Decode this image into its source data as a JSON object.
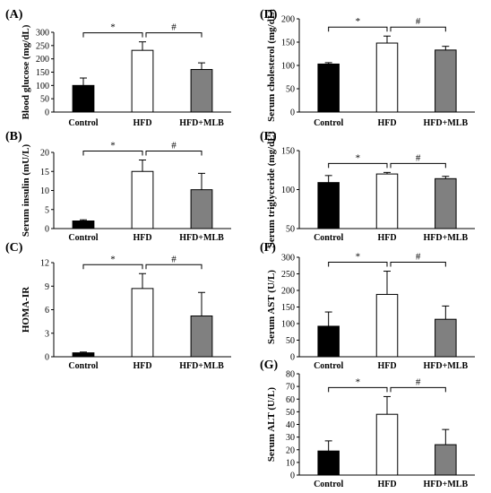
{
  "chart_data": [
    {
      "panel": "(A)",
      "type": "bar",
      "categories": [
        "Control",
        "HFD",
        "HFD+MLB"
      ],
      "values": [
        100,
        232,
        160
      ],
      "errors": [
        28,
        32,
        25
      ],
      "ylabel": "Blood glucose (mg/dL)",
      "ylim": [
        0,
        300
      ],
      "yticks": [
        0,
        50,
        100,
        150,
        200,
        250,
        300
      ],
      "bar_colors": [
        "#000000",
        "#ffffff",
        "#808080"
      ],
      "annotations": [
        {
          "from": 0,
          "to": 1,
          "symbol": "*"
        },
        {
          "from": 1,
          "to": 2,
          "symbol": "#"
        }
      ]
    },
    {
      "panel": "(B)",
      "type": "bar",
      "categories": [
        "Control",
        "HFD",
        "HFD+MLB"
      ],
      "values": [
        2,
        15,
        10.2
      ],
      "errors": [
        0.3,
        3,
        4.3
      ],
      "ylabel": "Serum insulin (mU/L)",
      "ylim": [
        0,
        20
      ],
      "yticks": [
        0,
        5,
        10,
        15,
        20
      ],
      "bar_colors": [
        "#000000",
        "#ffffff",
        "#808080"
      ],
      "annotations": [
        {
          "from": 0,
          "to": 1,
          "symbol": "*"
        },
        {
          "from": 1,
          "to": 2,
          "symbol": "#"
        }
      ]
    },
    {
      "panel": "(C)",
      "type": "bar",
      "categories": [
        "Control",
        "HFD",
        "HFD+MLB"
      ],
      "values": [
        0.5,
        8.7,
        5.2
      ],
      "errors": [
        0.1,
        1.9,
        3
      ],
      "ylabel": "HOMA-IR",
      "ylim": [
        0,
        12
      ],
      "yticks": [
        0,
        3,
        6,
        9,
        12
      ],
      "bar_colors": [
        "#000000",
        "#ffffff",
        "#808080"
      ],
      "annotations": [
        {
          "from": 0,
          "to": 1,
          "symbol": "*"
        },
        {
          "from": 1,
          "to": 2,
          "symbol": "#"
        }
      ]
    },
    {
      "panel": "(D)",
      "type": "bar",
      "categories": [
        "Control",
        "HFD",
        "HFD+MLB"
      ],
      "values": [
        103,
        148,
        133
      ],
      "errors": [
        3,
        15,
        8
      ],
      "ylabel": "Serum cholesterol (mg/dL)",
      "ylim": [
        0,
        200
      ],
      "yticks": [
        0,
        50,
        100,
        150,
        200
      ],
      "bar_colors": [
        "#000000",
        "#ffffff",
        "#808080"
      ],
      "annotations": [
        {
          "from": 0,
          "to": 1,
          "symbol": "*"
        },
        {
          "from": 1,
          "to": 2,
          "symbol": "#"
        }
      ]
    },
    {
      "panel": "(E)",
      "type": "bar",
      "categories": [
        "Control",
        "HFD",
        "HFD+MLB"
      ],
      "values": [
        109,
        120,
        114
      ],
      "errors": [
        9,
        2,
        3
      ],
      "ylabel": "Serum triglyceride (mg/dL)",
      "ylim": [
        50,
        150
      ],
      "yticks": [
        50,
        100,
        150
      ],
      "bar_colors": [
        "#000000",
        "#ffffff",
        "#808080"
      ],
      "annotations": [
        {
          "from": 0,
          "to": 1,
          "symbol": "*"
        },
        {
          "from": 1,
          "to": 2,
          "symbol": "#"
        }
      ]
    },
    {
      "panel": "(F)",
      "type": "bar",
      "categories": [
        "Control",
        "HFD",
        "HFD+MLB"
      ],
      "values": [
        92,
        188,
        113
      ],
      "errors": [
        43,
        70,
        40
      ],
      "ylabel": "Serum AST (U/L)",
      "ylim": [
        0,
        300
      ],
      "yticks": [
        0,
        50,
        100,
        150,
        200,
        250,
        300
      ],
      "bar_colors": [
        "#000000",
        "#ffffff",
        "#808080"
      ],
      "annotations": [
        {
          "from": 0,
          "to": 1,
          "symbol": "*"
        },
        {
          "from": 1,
          "to": 2,
          "symbol": "#"
        }
      ]
    },
    {
      "panel": "(G)",
      "type": "bar",
      "categories": [
        "Control",
        "HFD",
        "HFD+MLB"
      ],
      "values": [
        19,
        48,
        24
      ],
      "errors": [
        8,
        14,
        12
      ],
      "ylabel": "Serum ALT (U/L)",
      "ylim": [
        0,
        80
      ],
      "yticks": [
        0,
        10,
        20,
        30,
        40,
        50,
        60,
        70,
        80
      ],
      "bar_colors": [
        "#000000",
        "#ffffff",
        "#808080"
      ],
      "annotations": [
        {
          "from": 0,
          "to": 1,
          "symbol": "*"
        },
        {
          "from": 1,
          "to": 2,
          "symbol": "#"
        }
      ]
    }
  ]
}
